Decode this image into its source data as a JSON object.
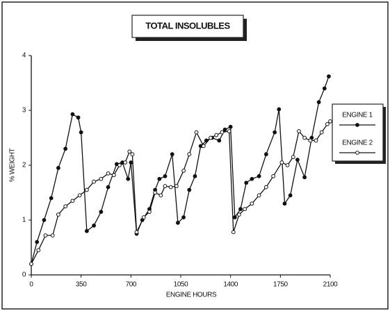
{
  "chart_data": {
    "type": "line",
    "title": "TOTAL INSOLUBLES",
    "xlabel": "ENGINE HOURS",
    "ylabel": "% WEIGHT",
    "xlim": [
      0,
      2100
    ],
    "xticks": [
      0,
      350,
      700,
      1050,
      1400,
      1750,
      2100
    ],
    "ylim": [
      0,
      4
    ],
    "yticks": [
      0,
      1,
      2,
      3,
      4
    ],
    "series": [
      {
        "name": "ENGINE 1",
        "color": "#111111",
        "marker": "filled-circle",
        "x": [
          0,
          40,
          90,
          140,
          190,
          240,
          290,
          330,
          350,
          390,
          440,
          490,
          540,
          600,
          640,
          680,
          700,
          740,
          780,
          830,
          870,
          900,
          940,
          990,
          1030,
          1070,
          1110,
          1150,
          1190,
          1230,
          1270,
          1320,
          1360,
          1400,
          1430,
          1470,
          1510,
          1550,
          1600,
          1650,
          1710,
          1740,
          1780,
          1820,
          1870,
          1920,
          1970,
          2020,
          2060,
          2090
        ],
        "values": [
          0.2,
          0.6,
          1.0,
          1.4,
          1.95,
          2.3,
          2.93,
          2.87,
          2.6,
          0.8,
          0.9,
          1.15,
          1.6,
          2.02,
          2.05,
          1.75,
          2.05,
          0.75,
          1.0,
          1.2,
          1.55,
          1.75,
          1.8,
          2.2,
          0.95,
          1.05,
          1.55,
          1.8,
          2.35,
          2.45,
          2.5,
          2.45,
          2.65,
          2.7,
          1.05,
          1.2,
          1.68,
          1.75,
          1.8,
          2.2,
          2.6,
          3.02,
          1.3,
          1.45,
          2.1,
          1.78,
          2.5,
          3.15,
          3.4,
          3.62
        ]
      },
      {
        "name": "ENGINE 2",
        "color": "#111111",
        "marker": "open-circle",
        "x": [
          0,
          50,
          100,
          150,
          190,
          240,
          290,
          340,
          390,
          440,
          490,
          540,
          580,
          620,
          660,
          690,
          710,
          740,
          790,
          830,
          870,
          910,
          940,
          980,
          1020,
          1070,
          1110,
          1160,
          1210,
          1260,
          1300,
          1340,
          1390,
          1420,
          1460,
          1500,
          1550,
          1600,
          1650,
          1700,
          1760,
          1800,
          1840,
          1880,
          1920,
          1960,
          2000,
          2040,
          2080,
          2100
        ],
        "values": [
          0.2,
          0.45,
          0.72,
          0.72,
          1.1,
          1.25,
          1.35,
          1.45,
          1.55,
          1.7,
          1.75,
          1.85,
          1.82,
          2.0,
          2.05,
          2.25,
          2.2,
          0.78,
          1.05,
          1.15,
          1.5,
          1.45,
          1.62,
          1.6,
          1.62,
          1.9,
          2.2,
          2.6,
          2.35,
          2.5,
          2.55,
          2.6,
          2.62,
          0.78,
          1.1,
          1.2,
          1.3,
          1.45,
          1.6,
          1.8,
          2.05,
          2.0,
          2.15,
          2.62,
          2.5,
          2.45,
          2.45,
          2.6,
          2.75,
          2.8
        ]
      }
    ]
  }
}
